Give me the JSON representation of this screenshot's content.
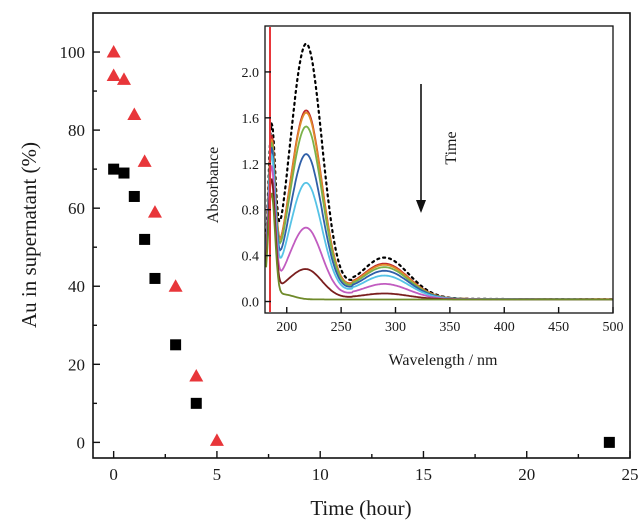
{
  "chart_data": [
    {
      "type": "scatter",
      "xlabel": "Time (hour)",
      "ylabel": "Au in supernatant (%)",
      "xlim": [
        -1,
        25
      ],
      "ylim": [
        -4,
        110
      ],
      "xticks": [
        0,
        5,
        10,
        15,
        20,
        25
      ],
      "yticks": [
        0,
        20,
        40,
        60,
        80,
        100
      ],
      "series": [
        {
          "marker": "square",
          "color": "#000000",
          "points": [
            [
              0,
              70
            ],
            [
              0.5,
              69
            ],
            [
              1,
              63
            ],
            [
              1.5,
              52
            ],
            [
              2,
              42
            ],
            [
              3,
              25
            ],
            [
              4,
              10
            ],
            [
              24,
              0
            ]
          ]
        },
        {
          "marker": "triangle",
          "color": "#e8363a",
          "points": [
            [
              0,
              100
            ],
            [
              0,
              94
            ],
            [
              0.5,
              93
            ],
            [
              1,
              84
            ],
            [
              1.5,
              72
            ],
            [
              2,
              59
            ],
            [
              3,
              40
            ],
            [
              4,
              17
            ],
            [
              5,
              0.5
            ]
          ]
        }
      ]
    },
    {
      "type": "line",
      "xlabel": "Wavelength / nm",
      "ylabel": "Absorbance",
      "xlim": [
        180,
        500
      ],
      "ylim": [
        -0.1,
        2.4
      ],
      "xticks": [
        200,
        250,
        300,
        350,
        400,
        450,
        500
      ],
      "yticks": [
        0.0,
        0.4,
        0.8,
        1.2,
        1.6,
        2.0
      ],
      "ytick_labels": [
        "0.0",
        "0.4",
        "0.8",
        "1.2",
        "1.6",
        "2.0"
      ],
      "annotation": "Time",
      "series": [
        {
          "style": "dotted",
          "color": "#000000",
          "base": 1.3,
          "peak": 2.22,
          "shoulder": 0.35
        },
        {
          "color": "#c0282a",
          "base": 1.25,
          "peak": 1.64,
          "shoulder": 0.3
        },
        {
          "color": "#e08a2a",
          "base": 1.22,
          "peak": 1.62,
          "shoulder": 0.29
        },
        {
          "color": "#7bb24a",
          "base": 1.2,
          "peak": 1.5,
          "shoulder": 0.27
        },
        {
          "color": "#2f5fa8",
          "base": 1.18,
          "peak": 1.26,
          "shoulder": 0.24
        },
        {
          "color": "#56c3e6",
          "base": 1.14,
          "peak": 1.01,
          "shoulder": 0.2
        },
        {
          "color": "#c15cc0",
          "base": 1.08,
          "peak": 0.62,
          "shoulder": 0.13
        },
        {
          "color": "#7a1e1e",
          "base": 1.0,
          "peak": 0.26,
          "shoulder": 0.05
        },
        {
          "color": "#6f8a2a",
          "base": 0.9,
          "peak": 0.0,
          "shoulder": 0.0
        }
      ]
    }
  ]
}
